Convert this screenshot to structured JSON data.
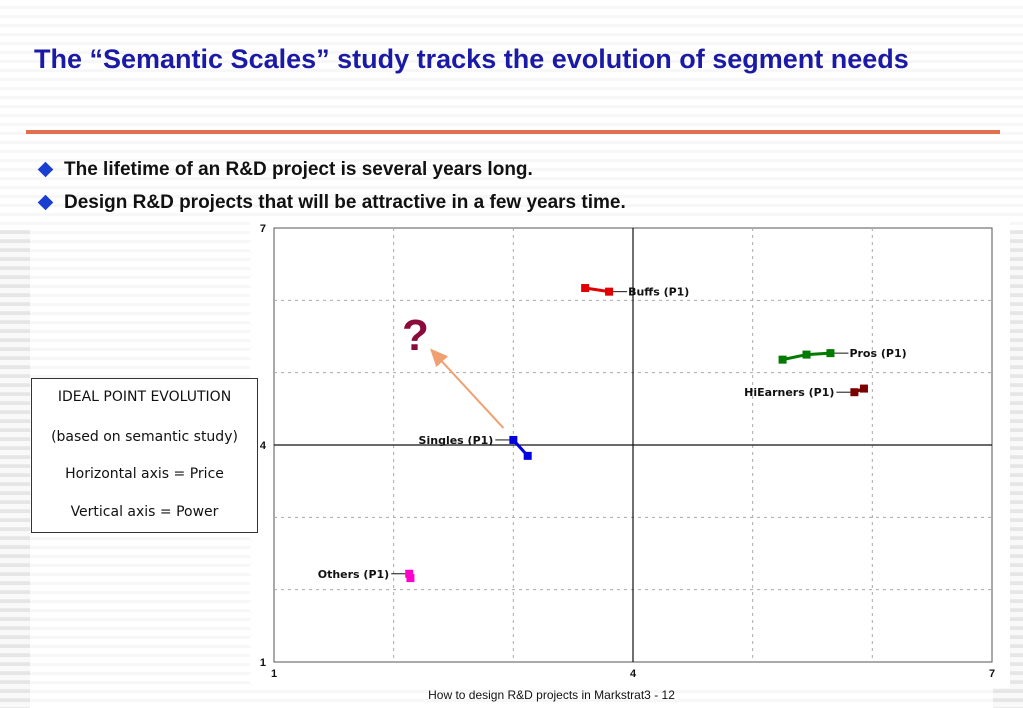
{
  "title": "The “Semantic Scales” study tracks the evolution of segment needs",
  "bullets": [
    "The lifetime of an R&D project is several years long.",
    "Design R&D projects that will be attractive in a few years time."
  ],
  "legend": {
    "line1": "IDEAL POINT EVOLUTION",
    "line2": "(based on semantic study)",
    "line3": "Horizontal axis = Price",
    "line4": "Vertical axis = Power"
  },
  "question_mark": "?",
  "footer": "How to design R&D projects in Markstrat3  - 12",
  "colors": {
    "title": "#1a1aa6",
    "rule": "#e07050",
    "arrow": "#f0a070",
    "question_mark": "#8b0a3c"
  },
  "chart_data": {
    "type": "scatter",
    "xlim": [
      1,
      7
    ],
    "ylim": [
      1,
      7
    ],
    "x_ticks": [
      "1",
      "4",
      "7"
    ],
    "y_ticks": [
      "1",
      "4",
      "7"
    ],
    "grid": true,
    "series": [
      {
        "name": "Buffs (P1)",
        "color": "#e00000",
        "points": [
          [
            3.6,
            6.17
          ],
          [
            3.8,
            6.12
          ]
        ]
      },
      {
        "name": "Pros (P1)",
        "color": "#007a00",
        "points": [
          [
            5.25,
            5.18
          ],
          [
            5.45,
            5.25
          ],
          [
            5.65,
            5.27
          ]
        ]
      },
      {
        "name": "HiEarners (P1)",
        "color": "#7a0000",
        "points": [
          [
            5.85,
            4.73
          ],
          [
            5.93,
            4.78
          ]
        ]
      },
      {
        "name": "Singles (P1)",
        "color": "#0000e0",
        "points": [
          [
            3.0,
            4.07
          ],
          [
            3.12,
            3.85
          ]
        ]
      },
      {
        "name": "Others (P1)",
        "color": "#ff00cc",
        "points": [
          [
            2.13,
            2.22
          ],
          [
            2.14,
            2.16
          ]
        ]
      }
    ]
  }
}
